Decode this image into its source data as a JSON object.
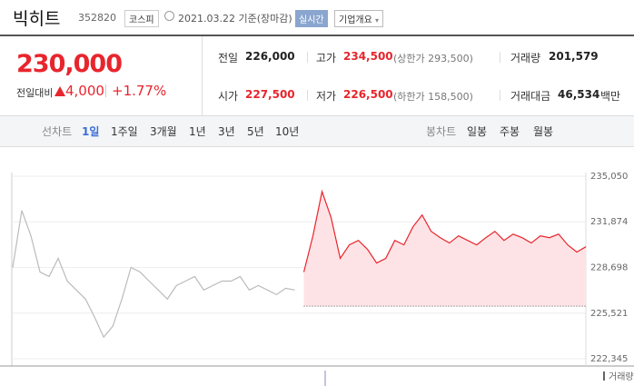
{
  "header": {
    "name": "빅히트",
    "code": "352820",
    "market": "코스피",
    "date": "2021.03.22 기준(장마감)",
    "realtime": "실시간",
    "company_info": "기업개요"
  },
  "price": {
    "current": "230,000",
    "change_label": "전일대비",
    "change": "4,000",
    "change_pct": "+1.77%"
  },
  "stats": [
    {
      "label": "전일",
      "value": "226,000"
    },
    {
      "label": "고가",
      "value": "234,500",
      "note": "(상한가 293,500)"
    },
    {
      "label": "거래량",
      "value": "201,579"
    },
    {
      "label": "시가",
      "value": "227,500"
    },
    {
      "label": "저가",
      "value": "226,500",
      "note": "(하한가 158,500)"
    },
    {
      "label": "거래대금",
      "value": "46,534",
      "unit": "백만"
    }
  ],
  "tabs": {
    "line_label": "선차트",
    "line": [
      "1일",
      "1주일",
      "3개월",
      "1년",
      "3년",
      "5년",
      "10년"
    ],
    "candle_label": "봉차트",
    "candle": [
      "일봉",
      "주봉",
      "월봉"
    ]
  },
  "chart_data": {
    "type": "line",
    "series": [
      {
        "color": "#bbbbbb",
        "values": [
          228700,
          232660,
          230900,
          228380,
          228070,
          229330,
          227750,
          227130,
          226500,
          225240,
          223850,
          224610,
          226500,
          228700,
          228380,
          227750,
          227130,
          226500,
          227440,
          227750,
          228070,
          227130,
          227440,
          227750,
          227750,
          228070,
          227130,
          227440,
          227130,
          226810,
          227250,
          227130,
          null,
          null,
          null,
          null,
          null,
          null,
          null,
          null,
          null,
          null,
          null,
          null,
          null,
          null,
          null,
          null,
          null,
          null,
          null,
          null,
          null,
          null,
          null,
          null,
          null,
          null,
          null,
          null,
          null,
          null,
          null,
          null
        ]
      },
      {
        "color": "#e8252d",
        "fill": "#fde3e5",
        "values": [
          null,
          null,
          null,
          null,
          null,
          null,
          null,
          null,
          null,
          null,
          null,
          null,
          null,
          null,
          null,
          null,
          null,
          null,
          null,
          null,
          null,
          null,
          null,
          null,
          null,
          null,
          null,
          null,
          null,
          null,
          null,
          null,
          228380,
          230900,
          233980,
          232160,
          229330,
          230270,
          230580,
          229960,
          229010,
          229330,
          230580,
          230270,
          231530,
          232350,
          231210,
          230770,
          230400,
          230900,
          230580,
          230270,
          230770,
          231210,
          230580,
          231020,
          230770,
          230400,
          230900,
          230770,
          231020,
          230270,
          229770,
          230140
        ]
      }
    ],
    "baseline": 226000,
    "ylim": [
      222345,
      235050
    ],
    "yticks": [
      {
        "value": 222345,
        "label": "222,345"
      },
      {
        "value": 225521,
        "label": "225,521"
      },
      {
        "value": 228698,
        "label": "228,698"
      },
      {
        "value": 231874,
        "label": "231,874"
      },
      {
        "value": 235050,
        "label": "235,050"
      }
    ],
    "grid": true,
    "volume_label": "거래량"
  }
}
